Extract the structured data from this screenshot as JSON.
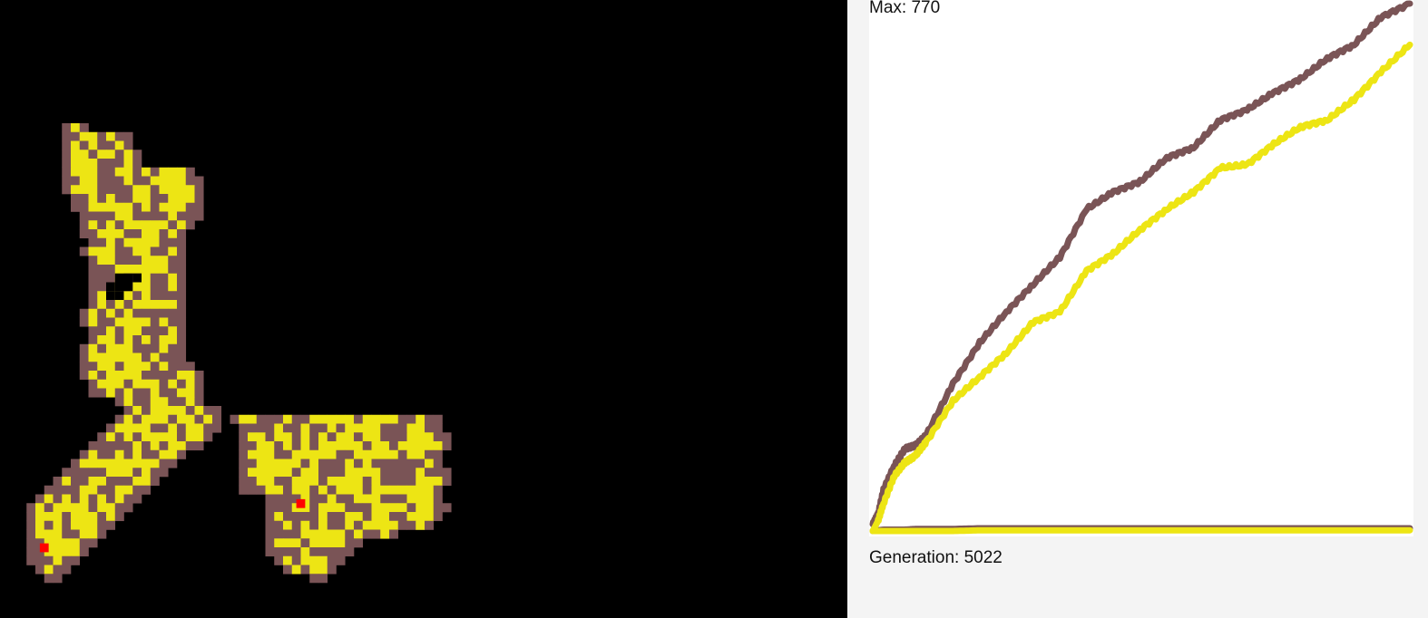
{
  "simulation": {
    "background_color": "#000000",
    "cell_colors": {
      "yellow": "#ede514",
      "brown": "#7a5456",
      "red": "#ff0000"
    }
  },
  "chart_data": {
    "type": "line",
    "x": [
      0,
      50,
      100,
      200,
      300,
      400,
      500,
      750,
      1000,
      1250,
      1500,
      1750,
      2000,
      2250,
      2500,
      2750,
      3000,
      3250,
      3500,
      3750,
      4000,
      4250,
      4500,
      4750,
      5022
    ],
    "ylim": [
      0,
      770
    ],
    "series": [
      {
        "color": "#7a5456",
        "values": [
          10,
          25,
          60,
          95,
          120,
          125,
          140,
          215,
          275,
          320,
          360,
          400,
          470,
          495,
          510,
          545,
          560,
          600,
          615,
          640,
          660,
          690,
          710,
          750,
          770
        ]
      },
      {
        "color": "#ede514",
        "values": [
          0,
          15,
          40,
          80,
          100,
          110,
          130,
          190,
          225,
          260,
          305,
          320,
          380,
          405,
          440,
          470,
          495,
          530,
          535,
          565,
          590,
          600,
          630,
          670,
          710
        ]
      },
      {
        "color": "#7a5456",
        "values": [
          0,
          1,
          2,
          2,
          2,
          3,
          3,
          3,
          4,
          4,
          4,
          4,
          4,
          4,
          4,
          4,
          4,
          4,
          4,
          4,
          4,
          4,
          4,
          4,
          4
        ]
      },
      {
        "color": "#ede514",
        "values": [
          0,
          0,
          0,
          0,
          0,
          0,
          0,
          0,
          1,
          1,
          1,
          1,
          1,
          1,
          1,
          1,
          1,
          1,
          1,
          1,
          1,
          1,
          1,
          1,
          1
        ]
      }
    ]
  },
  "labels": {
    "max_text": "Max: 770",
    "generation_text": "Generation: 5022"
  }
}
